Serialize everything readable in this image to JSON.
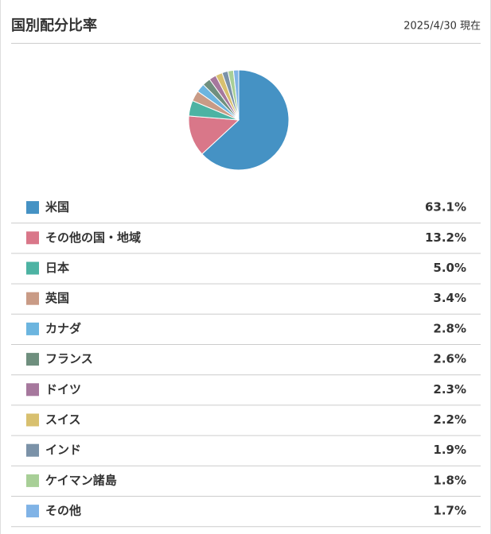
{
  "chart_data": {
    "type": "pie",
    "title": "国別配分比率",
    "subtitle": "2025/4/30 現在",
    "categories": [
      "米国",
      "その他の国・地域",
      "日本",
      "英国",
      "カナダ",
      "フランス",
      "ドイツ",
      "スイス",
      "インド",
      "ケイマン諸島",
      "その他"
    ],
    "values": [
      63.1,
      13.2,
      5.0,
      3.4,
      2.8,
      2.6,
      2.3,
      2.2,
      1.9,
      1.8,
      1.7
    ],
    "value_labels": [
      "63.1%",
      "13.2%",
      "5.0%",
      "3.4%",
      "2.8%",
      "2.6%",
      "2.3%",
      "2.2%",
      "1.9%",
      "1.8%",
      "1.7%"
    ],
    "colors": [
      "#4592c4",
      "#d97789",
      "#4db3a3",
      "#c99b86",
      "#6cb5df",
      "#6f8f7e",
      "#a6789d",
      "#d8c06f",
      "#7b92a8",
      "#a8cf97",
      "#80b3e6"
    ]
  }
}
